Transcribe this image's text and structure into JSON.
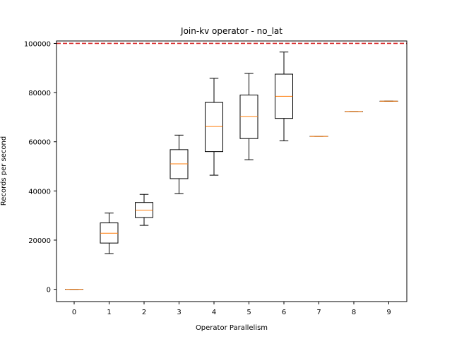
{
  "chart_data": {
    "type": "box",
    "title": "Join-kv operator - no_lat",
    "xlabel": "Operator Parallelism",
    "ylabel": "Records per second",
    "ylim": [
      -5000,
      101000
    ],
    "yticks": [
      0,
      20000,
      40000,
      60000,
      80000,
      100000
    ],
    "ytick_labels": [
      "0",
      "20000",
      "40000",
      "60000",
      "80000",
      "100000"
    ],
    "categories": [
      "0",
      "1",
      "2",
      "3",
      "4",
      "5",
      "6",
      "7",
      "8",
      "9"
    ],
    "boxes": [
      {
        "category": "0",
        "whisker_low": 0,
        "q1": 0,
        "median": 0,
        "q3": 0,
        "whisker_high": 0
      },
      {
        "category": "1",
        "whisker_low": 14500,
        "q1": 18800,
        "median": 22800,
        "q3": 27000,
        "whisker_high": 31000
      },
      {
        "category": "2",
        "whisker_low": 26000,
        "q1": 29200,
        "median": 32200,
        "q3": 35300,
        "whisker_high": 38600
      },
      {
        "category": "3",
        "whisker_low": 38900,
        "q1": 45000,
        "median": 51000,
        "q3": 56800,
        "whisker_high": 62700
      },
      {
        "category": "4",
        "whisker_low": 46400,
        "q1": 56000,
        "median": 66200,
        "q3": 76000,
        "whisker_high": 85800
      },
      {
        "category": "5",
        "whisker_low": 52700,
        "q1": 61300,
        "median": 70300,
        "q3": 79000,
        "whisker_high": 87800
      },
      {
        "category": "6",
        "whisker_low": 60400,
        "q1": 69500,
        "median": 78500,
        "q3": 87500,
        "whisker_high": 96500
      },
      {
        "category": "7",
        "whisker_low": 62200,
        "q1": 62200,
        "median": 62200,
        "q3": 62200,
        "whisker_high": 62200
      },
      {
        "category": "8",
        "whisker_low": 72300,
        "q1": 72300,
        "median": 72300,
        "q3": 72300,
        "whisker_high": 72300
      },
      {
        "category": "9",
        "whisker_low": 76500,
        "q1": 76500,
        "median": 76500,
        "q3": 76500,
        "whisker_high": 76500
      }
    ],
    "reference_line": {
      "y": 100000,
      "style": "dashed",
      "color": "#d62728"
    },
    "box_color": "#000000",
    "median_color": "#ff7f0e",
    "grid": false,
    "legend": "none"
  }
}
